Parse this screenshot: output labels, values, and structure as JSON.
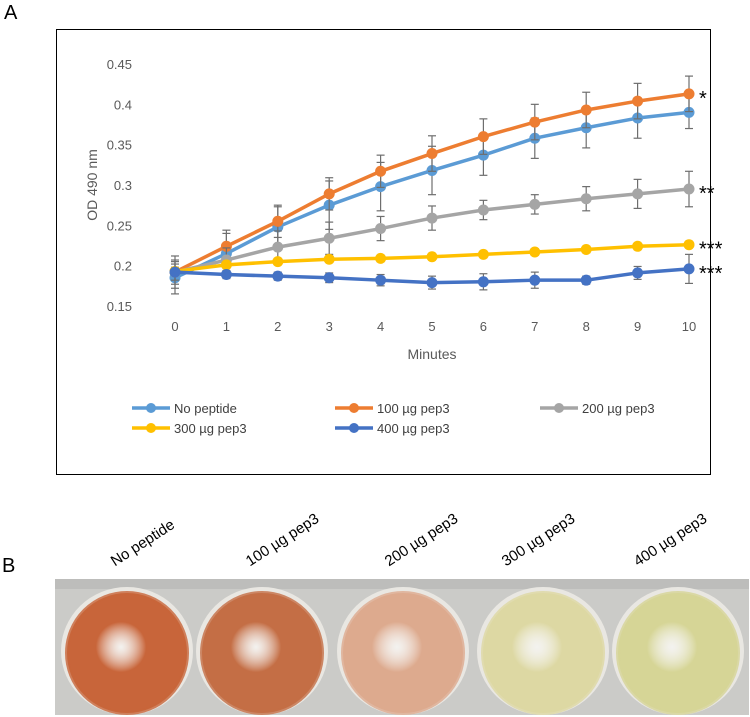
{
  "panel_labels": {
    "a": "A",
    "b": "B"
  },
  "chart_data": {
    "type": "line",
    "title": "",
    "xlabel": "Minutes",
    "ylabel": "OD 490 nm",
    "x": [
      0,
      1,
      2,
      3,
      4,
      5,
      6,
      7,
      8,
      9,
      10
    ],
    "xlim": [
      0,
      10
    ],
    "ylim": [
      0.15,
      0.45
    ],
    "yticks": [
      0.15,
      0.2,
      0.25,
      0.3,
      0.35,
      0.4,
      0.45
    ],
    "ytick_labels": [
      "0.15",
      "0.2",
      "0.25",
      "0.3",
      "0.35",
      "0.4",
      "0.45"
    ],
    "xtick_labels": [
      "0",
      "1",
      "2",
      "3",
      "4",
      "5",
      "6",
      "7",
      "8",
      "9",
      "10"
    ],
    "legend_position": "bottom",
    "series": [
      {
        "name": "No peptide",
        "color": "#5B9BD5",
        "values": [
          0.185,
          0.215,
          0.248,
          0.275,
          0.298,
          0.318,
          0.337,
          0.358,
          0.371,
          0.383,
          0.39
        ],
        "errors": [
          0.02,
          0.025,
          0.025,
          0.03,
          0.03,
          0.03,
          0.025,
          0.025,
          0.025,
          0.025,
          0.02
        ]
      },
      {
        "name": "100 µg pep3",
        "color": "#ED7D31",
        "values": [
          0.192,
          0.224,
          0.255,
          0.289,
          0.317,
          0.339,
          0.36,
          0.378,
          0.393,
          0.404,
          0.413
        ],
        "errors": [
          0.01,
          0.02,
          0.02,
          0.02,
          0.02,
          0.022,
          0.022,
          0.022,
          0.022,
          0.022,
          0.022
        ],
        "significance": "*"
      },
      {
        "name": "200 µg pep3",
        "color": "#A5A5A5",
        "values": [
          0.192,
          0.207,
          0.223,
          0.234,
          0.246,
          0.259,
          0.269,
          0.276,
          0.283,
          0.289,
          0.295
        ],
        "errors": [
          0.015,
          0.015,
          0.02,
          0.02,
          0.015,
          0.015,
          0.012,
          0.012,
          0.015,
          0.018,
          0.022
        ],
        "significance": "**"
      },
      {
        "name": "300 µg pep3",
        "color": "#FFC000",
        "values": [
          0.193,
          0.201,
          0.205,
          0.208,
          0.209,
          0.211,
          0.214,
          0.217,
          0.22,
          0.224,
          0.226
        ],
        "errors": [
          0.005,
          0.004,
          0.004,
          0.004,
          0.004,
          0.004,
          0.004,
          0.004,
          0.004,
          0.004,
          0.004
        ],
        "significance": "***"
      },
      {
        "name": "400 µg pep3",
        "color": "#4472C4",
        "values": [
          0.192,
          0.189,
          0.187,
          0.185,
          0.182,
          0.179,
          0.18,
          0.182,
          0.182,
          0.191,
          0.196
        ],
        "errors": [
          0.02,
          0.005,
          0.005,
          0.006,
          0.007,
          0.008,
          0.01,
          0.01,
          0.005,
          0.008,
          0.018
        ],
        "significance": "***"
      }
    ]
  },
  "wells": {
    "labels": [
      "No peptide",
      "100 µg pep3",
      "200 µg pep3",
      "300 µg pep3",
      "400 µg pep3"
    ],
    "colors": [
      "#C8653A",
      "#C46E45",
      "#DDAA8E",
      "#DDD8A3",
      "#D6D596"
    ]
  }
}
